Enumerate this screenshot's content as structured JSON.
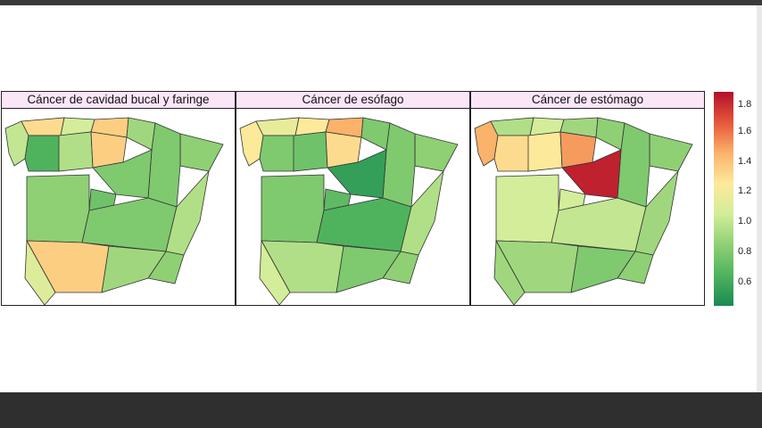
{
  "panels": [
    {
      "title": "Cáncer de cavidad bucal y faringe",
      "regions": {
        "galicia": 1.05,
        "asturias": 1.35,
        "cantabria": 1.1,
        "basque": 1.4,
        "navarra": 0.95,
        "aragon": 0.85,
        "catalonia": 0.9,
        "castilla_leon_w": 1.0,
        "castilla_leon_e": 0.85,
        "rioja_burgos": 1.4,
        "leon": 0.7,
        "madrid": 0.8,
        "castilla_mancha": 0.85,
        "extremadura": 0.9,
        "valencia": 1.0,
        "andalucia_w": 1.4,
        "andalucia_e": 0.95,
        "murcia": 0.9,
        "huelva_cadiz": 1.15
      }
    },
    {
      "title": "Cáncer de esófago",
      "regions": {
        "galicia": 1.3,
        "asturias": 1.2,
        "cantabria": 1.3,
        "basque": 1.5,
        "navarra": 0.85,
        "aragon": 0.85,
        "catalonia": 0.9,
        "castilla_leon_w": 0.8,
        "castilla_leon_e": 0.6,
        "rioja_burgos": 1.35,
        "leon": 0.85,
        "madrid": 0.75,
        "castilla_mancha": 0.7,
        "extremadura": 0.85,
        "valencia": 1.0,
        "andalucia_w": 1.0,
        "andalucia_e": 0.85,
        "murcia": 0.9,
        "huelva_cadiz": 1.1
      }
    },
    {
      "title": "Cáncer de estómago",
      "regions": {
        "galicia": 1.5,
        "asturias": 1.0,
        "cantabria": 1.1,
        "basque": 0.95,
        "navarra": 0.9,
        "aragon": 0.85,
        "catalonia": 0.9,
        "castilla_leon_w": 1.3,
        "castilla_leon_e": 1.85,
        "rioja_burgos": 1.55,
        "leon": 1.35,
        "madrid": 1.1,
        "castilla_mancha": 1.05,
        "extremadura": 1.1,
        "valencia": 0.95,
        "andalucia_w": 0.95,
        "andalucia_e": 0.85,
        "murcia": 0.9,
        "huelva_cadiz": 0.95
      }
    }
  ],
  "legend": {
    "labels": [
      "1.8",
      "1.6",
      "1.4",
      "1.2",
      "1.0",
      "0.8",
      "0.6"
    ],
    "min": 0.5,
    "max": 1.9,
    "colors": [
      "#1a8a52",
      "#4fb35e",
      "#8fd074",
      "#d3ed9a",
      "#fde99a",
      "#fbb26a",
      "#e5573b",
      "#b30f2b"
    ]
  }
}
